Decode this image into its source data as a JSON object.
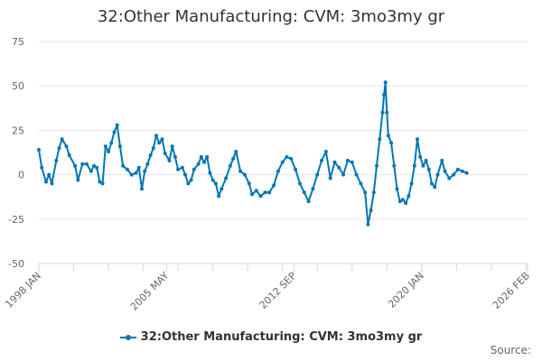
{
  "chart_data": {
    "type": "line",
    "title": "32:Other Manufacturing: CVM: 3mo3my gr",
    "xlabel": "",
    "ylabel": "",
    "ylim": [
      -50,
      75
    ],
    "y_ticks": [
      75,
      50,
      25,
      0,
      -25,
      -50
    ],
    "x_range": [
      "1998-01",
      "2026-02"
    ],
    "x_tick_labels": [
      {
        "label": "1998 JAN",
        "date": "1998-01"
      },
      {
        "label": "2005 MAY",
        "date": "2005-05"
      },
      {
        "label": "2012 SEP",
        "date": "2012-09"
      },
      {
        "label": "2020 JAN",
        "date": "2020-01"
      },
      {
        "label": "2026 FEB",
        "date": "2026-02"
      }
    ],
    "grid": true,
    "legend_position": "bottom",
    "colors": {
      "series": "#0077b3",
      "grid": "#e6e6e6",
      "axis": "#ccd6eb"
    },
    "series": [
      {
        "name": "32:Other Manufacturing: CVM: 3mo3my gr",
        "points": [
          [
            "1998-01",
            14
          ],
          [
            "1998-03",
            4
          ],
          [
            "1998-06",
            -4
          ],
          [
            "1998-08",
            0
          ],
          [
            "1998-10",
            -5
          ],
          [
            "1999-01",
            8
          ],
          [
            "1999-03",
            15
          ],
          [
            "1999-05",
            20
          ],
          [
            "1999-08",
            16
          ],
          [
            "1999-10",
            11
          ],
          [
            "2000-02",
            5
          ],
          [
            "2000-04",
            -3
          ],
          [
            "2000-07",
            6
          ],
          [
            "2000-10",
            6
          ],
          [
            "2001-01",
            2
          ],
          [
            "2001-03",
            5
          ],
          [
            "2001-05",
            4
          ],
          [
            "2001-07",
            -4
          ],
          [
            "2001-09",
            -5
          ],
          [
            "2001-11",
            16
          ],
          [
            "2002-01",
            13
          ],
          [
            "2002-03",
            18
          ],
          [
            "2002-05",
            24
          ],
          [
            "2002-07",
            28
          ],
          [
            "2002-09",
            16
          ],
          [
            "2002-11",
            5
          ],
          [
            "2003-02",
            3
          ],
          [
            "2003-05",
            0
          ],
          [
            "2003-08",
            1
          ],
          [
            "2003-10",
            4
          ],
          [
            "2003-12",
            -8
          ],
          [
            "2004-02",
            2
          ],
          [
            "2004-04",
            6
          ],
          [
            "2004-06",
            11
          ],
          [
            "2004-08",
            15
          ],
          [
            "2004-10",
            22
          ],
          [
            "2004-12",
            18
          ],
          [
            "2005-02",
            20
          ],
          [
            "2005-04",
            12
          ],
          [
            "2005-07",
            8
          ],
          [
            "2005-09",
            16
          ],
          [
            "2005-11",
            10
          ],
          [
            "2006-01",
            3
          ],
          [
            "2006-04",
            4
          ],
          [
            "2006-06",
            0
          ],
          [
            "2006-08",
            -5
          ],
          [
            "2006-10",
            -3
          ],
          [
            "2006-12",
            3
          ],
          [
            "2007-03",
            6
          ],
          [
            "2007-05",
            10
          ],
          [
            "2007-07",
            7
          ],
          [
            "2007-09",
            10
          ],
          [
            "2007-11",
            1
          ],
          [
            "2008-01",
            -3
          ],
          [
            "2008-03",
            -5
          ],
          [
            "2008-05",
            -12
          ],
          [
            "2008-07",
            -8
          ],
          [
            "2008-10",
            -2
          ],
          [
            "2009-01",
            5
          ],
          [
            "2009-03",
            9
          ],
          [
            "2009-05",
            13
          ],
          [
            "2009-08",
            2
          ],
          [
            "2009-11",
            0
          ],
          [
            "2010-02",
            -5
          ],
          [
            "2010-04",
            -11
          ],
          [
            "2010-07",
            -9
          ],
          [
            "2010-10",
            -12
          ],
          [
            "2011-01",
            -10
          ],
          [
            "2011-04",
            -10
          ],
          [
            "2011-07",
            -6
          ],
          [
            "2011-10",
            2
          ],
          [
            "2012-01",
            7
          ],
          [
            "2012-04",
            10
          ],
          [
            "2012-07",
            9
          ],
          [
            "2012-10",
            3
          ],
          [
            "2013-01",
            -5
          ],
          [
            "2013-04",
            -10
          ],
          [
            "2013-07",
            -15
          ],
          [
            "2013-10",
            -8
          ],
          [
            "2014-01",
            0
          ],
          [
            "2014-04",
            8
          ],
          [
            "2014-07",
            13
          ],
          [
            "2014-10",
            -2
          ],
          [
            "2015-01",
            7
          ],
          [
            "2015-04",
            4
          ],
          [
            "2015-07",
            0
          ],
          [
            "2015-10",
            8
          ],
          [
            "2016-01",
            7
          ],
          [
            "2016-04",
            0
          ],
          [
            "2016-07",
            -5
          ],
          [
            "2016-10",
            -10
          ],
          [
            "2016-12",
            -28
          ],
          [
            "2017-02",
            -20
          ],
          [
            "2017-04",
            -10
          ],
          [
            "2017-06",
            5
          ],
          [
            "2017-08",
            20
          ],
          [
            "2017-10",
            35
          ],
          [
            "2017-11",
            45
          ],
          [
            "2017-12",
            52
          ],
          [
            "2018-01",
            35
          ],
          [
            "2018-02",
            22
          ],
          [
            "2018-04",
            18
          ],
          [
            "2018-06",
            5
          ],
          [
            "2018-08",
            -8
          ],
          [
            "2018-10",
            -15
          ],
          [
            "2018-12",
            -14
          ],
          [
            "2019-02",
            -16
          ],
          [
            "2019-04",
            -12
          ],
          [
            "2019-06",
            -5
          ],
          [
            "2019-08",
            5
          ],
          [
            "2019-10",
            20
          ],
          [
            "2019-12",
            10
          ],
          [
            "2020-02",
            5
          ],
          [
            "2020-04",
            8
          ],
          [
            "2020-06",
            3
          ],
          [
            "2020-08",
            -5
          ],
          [
            "2020-10",
            -7
          ],
          [
            "2020-12",
            0
          ],
          [
            "2021-03",
            8
          ],
          [
            "2021-05",
            2
          ],
          [
            "2021-08",
            -2
          ],
          [
            "2021-11",
            0
          ],
          [
            "2022-02",
            3
          ],
          [
            "2022-05",
            2
          ],
          [
            "2022-08",
            1
          ]
        ]
      }
    ]
  },
  "legend": {
    "label": "32:Other Manufacturing: CVM: 3mo3my gr"
  },
  "footer": {
    "source": "Source:"
  }
}
